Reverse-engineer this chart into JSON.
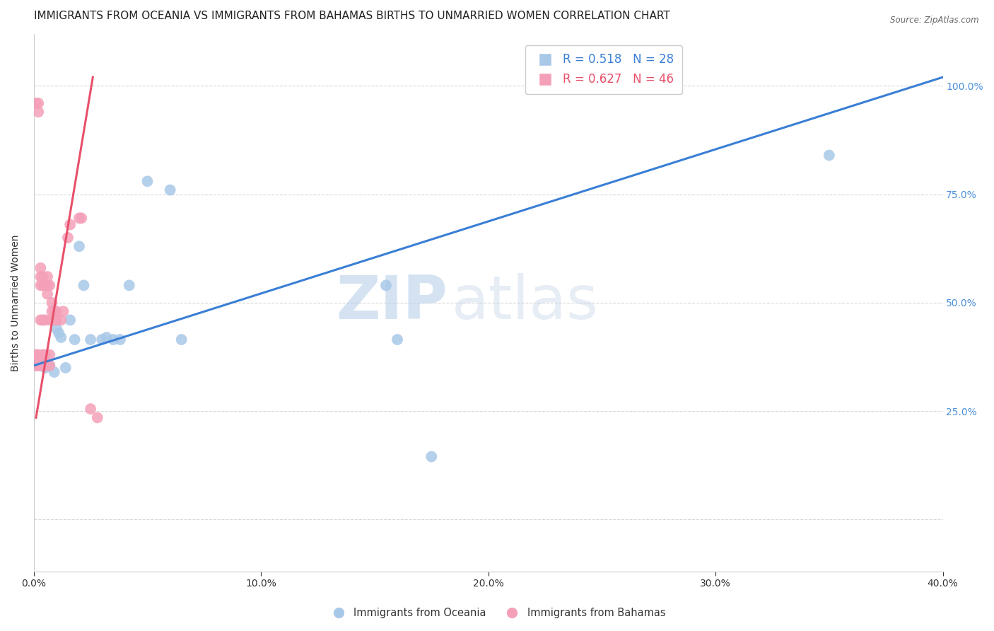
{
  "title": "IMMIGRANTS FROM OCEANIA VS IMMIGRANTS FROM BAHAMAS BIRTHS TO UNMARRIED WOMEN CORRELATION CHART",
  "source": "Source: ZipAtlas.com",
  "ylabel_left": "Births to Unmarried Women",
  "x_min": 0.0,
  "x_max": 0.4,
  "y_min": -0.12,
  "y_max": 1.12,
  "yticks_right": [
    0.25,
    0.5,
    0.75,
    1.0
  ],
  "ytick_labels_right": [
    "25.0%",
    "50.0%",
    "75.0%",
    "100.0%"
  ],
  "xticks": [
    0.0,
    0.1,
    0.2,
    0.3,
    0.4
  ],
  "color_oceania": "#a8c8e8",
  "color_bahamas": "#f4a0b8",
  "color_line_oceania": "#3a7fd5",
  "color_line_bahamas": "#e8506a",
  "R_oceania": 0.518,
  "N_oceania": 28,
  "R_bahamas": 0.627,
  "N_bahamas": 46,
  "watermark_zip": "ZIP",
  "watermark_atlas": "atlas",
  "grid_color": "#d8d8d8",
  "background_color": "#ffffff",
  "title_fontsize": 11,
  "axis_label_fontsize": 10,
  "tick_fontsize": 10,
  "legend_fontsize": 12,
  "oceania_x": [
    0.001,
    0.002,
    0.003,
    0.004,
    0.005,
    0.007,
    0.009,
    0.01,
    0.011,
    0.012,
    0.014,
    0.016,
    0.018,
    0.02,
    0.022,
    0.025,
    0.03,
    0.032,
    0.035,
    0.038,
    0.042,
    0.05,
    0.06,
    0.065,
    0.155,
    0.16,
    0.175,
    0.35
  ],
  "oceania_y": [
    0.355,
    0.36,
    0.37,
    0.36,
    0.35,
    0.355,
    0.34,
    0.44,
    0.43,
    0.42,
    0.35,
    0.46,
    0.415,
    0.63,
    0.54,
    0.415,
    0.415,
    0.42,
    0.415,
    0.415,
    0.54,
    0.78,
    0.76,
    0.415,
    0.54,
    0.415,
    0.145,
    0.84
  ],
  "bahamas_x": [
    0.001,
    0.001,
    0.001,
    0.002,
    0.002,
    0.002,
    0.002,
    0.003,
    0.003,
    0.003,
    0.003,
    0.003,
    0.003,
    0.003,
    0.004,
    0.004,
    0.004,
    0.004,
    0.004,
    0.004,
    0.005,
    0.005,
    0.005,
    0.005,
    0.005,
    0.006,
    0.006,
    0.006,
    0.007,
    0.007,
    0.007,
    0.007,
    0.008,
    0.008,
    0.009,
    0.009,
    0.01,
    0.01,
    0.012,
    0.013,
    0.015,
    0.016,
    0.02,
    0.021,
    0.025,
    0.028
  ],
  "bahamas_y": [
    0.355,
    0.38,
    0.96,
    0.355,
    0.38,
    0.96,
    0.94,
    0.355,
    0.36,
    0.37,
    0.46,
    0.54,
    0.56,
    0.58,
    0.355,
    0.36,
    0.38,
    0.46,
    0.54,
    0.56,
    0.355,
    0.36,
    0.38,
    0.46,
    0.54,
    0.52,
    0.54,
    0.56,
    0.355,
    0.38,
    0.46,
    0.54,
    0.48,
    0.5,
    0.46,
    0.48,
    0.46,
    0.48,
    0.46,
    0.48,
    0.65,
    0.68,
    0.695,
    0.695,
    0.255,
    0.235
  ],
  "line_oceania_x0": 0.0,
  "line_oceania_x1": 0.4,
  "line_oceania_y0": 0.355,
  "line_oceania_y1": 1.02,
  "line_bahamas_x0": 0.001,
  "line_bahamas_x1": 0.026,
  "line_bahamas_y0": 0.235,
  "line_bahamas_y1": 1.02
}
